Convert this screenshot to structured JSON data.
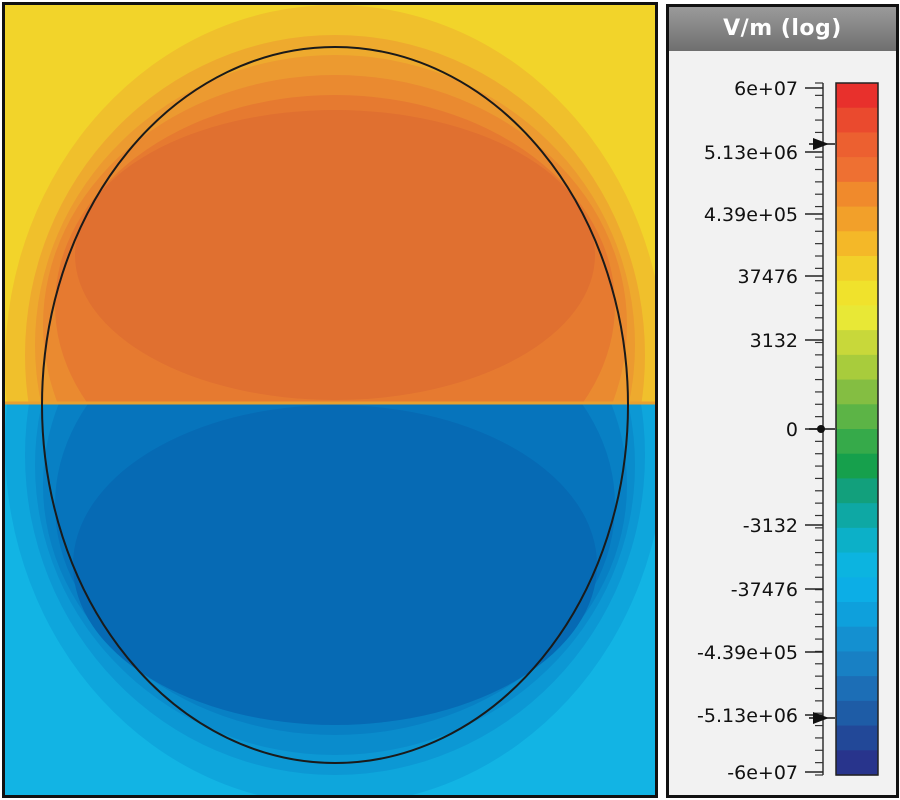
{
  "legend": {
    "title": "V/m (log)",
    "tick_labels": [
      "6e+07",
      "5.13e+06",
      "4.39e+05",
      "37476",
      "3132",
      "0",
      "-3132",
      "-37476",
      "-4.39e+05",
      "-5.13e+06",
      "-6e+07"
    ],
    "color_bands_top_to_bottom": [
      "#e8302c",
      "#ea4a2e",
      "#ec6030",
      "#ee7032",
      "#f08a2c",
      "#f2a02a",
      "#f4b828",
      "#f2d02a",
      "#f0e22c",
      "#e8e836",
      "#c8d83a",
      "#a8cc3c",
      "#84be42",
      "#5cb446",
      "#36aa4a",
      "#16a04c",
      "#12a07c",
      "#0ea8a4",
      "#0cb0c8",
      "#0cb4e0",
      "#0caee6",
      "#0ea0dc",
      "#1490d0",
      "#1880c4",
      "#1c6eb6",
      "#1e5ca6",
      "#224898",
      "#28348c"
    ],
    "markers": [
      "5.13e+06",
      "0",
      "-5.13e+06"
    ]
  },
  "field_plot": {
    "upper_half_colors": [
      "#f2d42a",
      "#f0c02c",
      "#eeaa2e",
      "#ec9a30",
      "#ea8a30",
      "#e67a30",
      "#e07030"
    ],
    "lower_half_colors": [
      "#12b4e4",
      "#0ea6dc",
      "#0c98d4",
      "#0a8ccc",
      "#0880c4",
      "#0674bc",
      "#066ab4"
    ],
    "outline_color": "#1a1a1a"
  }
}
